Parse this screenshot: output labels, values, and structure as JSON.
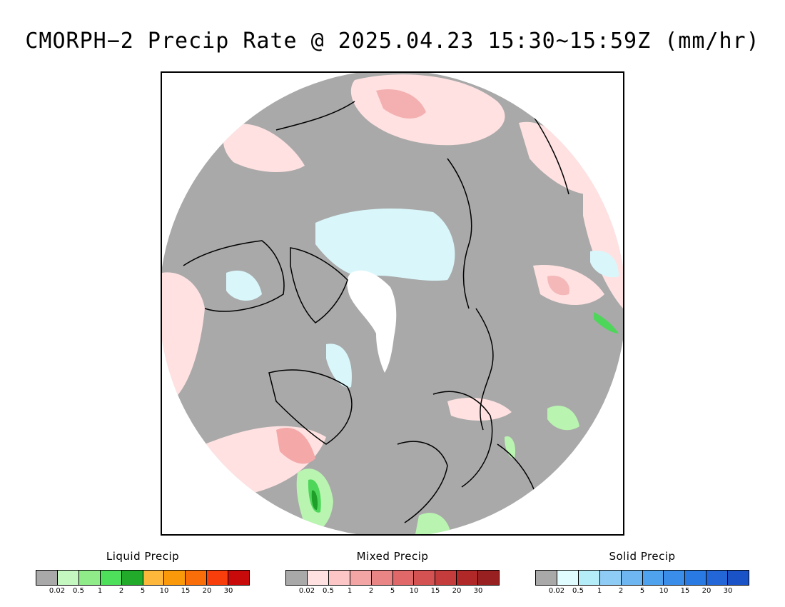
{
  "title": "CMORPH−2 Precip Rate @ 2025.04.23 15:30~15:59Z (mm/hr)",
  "map": {
    "projection": "polar stereographic, north pole",
    "colors": {
      "no_precip": "#a9a9a9",
      "ice_cap": "#ffffff",
      "coastline": "#000000",
      "mixed_light": "#ffe1e1",
      "mixed_mid": "#f4a8a8",
      "solid_light": "#d9f7fb",
      "liquid_light": "#b9f5b0",
      "liquid_mid": "#4ed65a",
      "liquid_dark": "#1f9e2a"
    }
  },
  "legends": [
    {
      "title": "Liquid Precip",
      "colors": [
        "#a9a9a9",
        "#c5f7c0",
        "#90ec88",
        "#4ee05a",
        "#22aa2a",
        "#fdb83c",
        "#fa9a0a",
        "#fa6e0a",
        "#f83e0a",
        "#c80a0a"
      ],
      "ticks": [
        "0.02",
        "0.5",
        "1",
        "2",
        "5",
        "10",
        "15",
        "20",
        "30"
      ]
    },
    {
      "title": "Mixed Precip",
      "colors": [
        "#a9a9a9",
        "#ffe1e1",
        "#fcc6c6",
        "#f3a5a5",
        "#ea8585",
        "#e06868",
        "#d45252",
        "#c43c3c",
        "#b02828",
        "#982020"
      ],
      "ticks": [
        "0.02",
        "0.5",
        "1",
        "2",
        "5",
        "10",
        "15",
        "20",
        "30"
      ]
    },
    {
      "title": "Solid Precip",
      "colors": [
        "#a9a9a9",
        "#e0fcff",
        "#b4ecf8",
        "#8ecbf5",
        "#6eb6f2",
        "#4ea2ee",
        "#3a8eea",
        "#2a7ae4",
        "#2266d8",
        "#1a52c8"
      ],
      "ticks": [
        "0.02",
        "0.5",
        "1",
        "2",
        "5",
        "10",
        "15",
        "20",
        "30"
      ]
    }
  ]
}
